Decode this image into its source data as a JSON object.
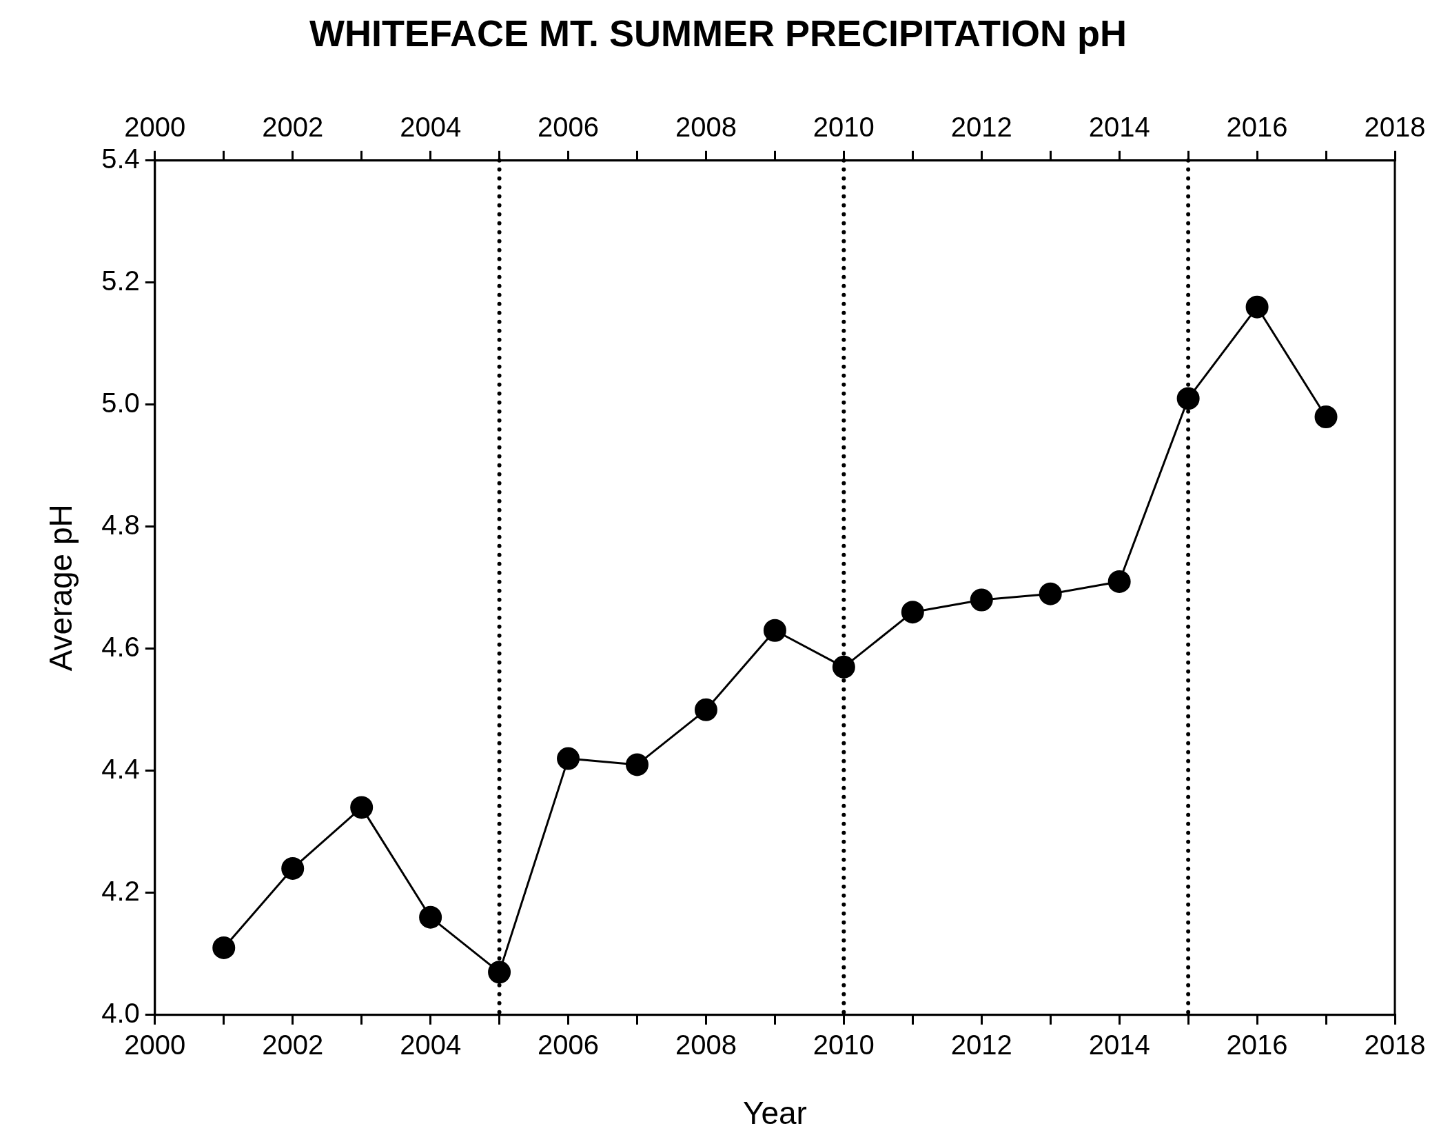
{
  "chart_data": {
    "type": "line",
    "title": "WHITEFACE MT. SUMMER PRECIPITATION pH",
    "xlabel": "Year",
    "ylabel": "Average pH",
    "x": [
      2001,
      2002,
      2003,
      2004,
      2005,
      2006,
      2007,
      2008,
      2009,
      2010,
      2011,
      2012,
      2013,
      2014,
      2015,
      2016,
      2017
    ],
    "series": [
      {
        "color": "#000000",
        "values": [
          4.11,
          4.24,
          4.34,
          4.16,
          4.07,
          4.42,
          4.41,
          4.5,
          4.63,
          4.57,
          4.66,
          4.68,
          4.69,
          4.71,
          5.01,
          5.16,
          4.98
        ]
      }
    ],
    "xlim": [
      2000,
      2018
    ],
    "xticks": [
      2000,
      {
        "value": 2001,
        "label": null
      },
      2002,
      {
        "value": 2003,
        "label": null
      },
      2004,
      {
        "value": 2005,
        "label": null
      },
      2006,
      {
        "value": 2007,
        "label": null
      },
      2008,
      {
        "value": 2009,
        "label": null
      },
      2010,
      {
        "value": 2011,
        "label": null
      },
      2012,
      {
        "value": 2013,
        "label": null
      },
      2014,
      {
        "value": 2015,
        "label": null
      },
      2016,
      {
        "value": 2017,
        "label": null
      },
      2018
    ],
    "x2lim": [
      2000,
      2018
    ],
    "x2ticks": [
      2000,
      {
        "value": 2001,
        "label": null
      },
      2002,
      {
        "value": 2003,
        "label": null
      },
      2004,
      {
        "value": 2005,
        "label": null
      },
      2006,
      {
        "value": 2007,
        "label": null
      },
      2008,
      {
        "value": 2009,
        "label": null
      },
      2010,
      {
        "value": 2011,
        "label": null
      },
      2012,
      {
        "value": 2013,
        "label": null
      },
      2014,
      {
        "value": 2015,
        "label": null
      },
      2016,
      {
        "value": 2017,
        "label": null
      },
      2018
    ],
    "ylim": [
      4.0,
      5.4
    ],
    "yticks": [
      {
        "value": 4.0,
        "label": "4.0"
      },
      {
        "value": 4.2,
        "label": "4.2"
      },
      {
        "value": 4.4,
        "label": "4.4"
      },
      {
        "value": 4.6,
        "label": "4.6"
      },
      {
        "value": 4.8,
        "label": "4.8"
      },
      {
        "value": 5.0,
        "label": "5.0"
      },
      {
        "value": 5.2,
        "label": "5.2"
      },
      {
        "value": 5.4,
        "label": "5.4"
      }
    ],
    "ref_lines": [
      {
        "axis": "x",
        "value": 2005,
        "color": "#000000",
        "line_style": "dotted"
      },
      {
        "axis": "x",
        "value": 2010,
        "color": "#000000",
        "line_style": "dotted"
      },
      {
        "axis": "x",
        "value": 2015,
        "color": "#000000",
        "line_style": "dotted"
      }
    ],
    "grid": false,
    "marker": "circle",
    "line_style": "solid"
  }
}
